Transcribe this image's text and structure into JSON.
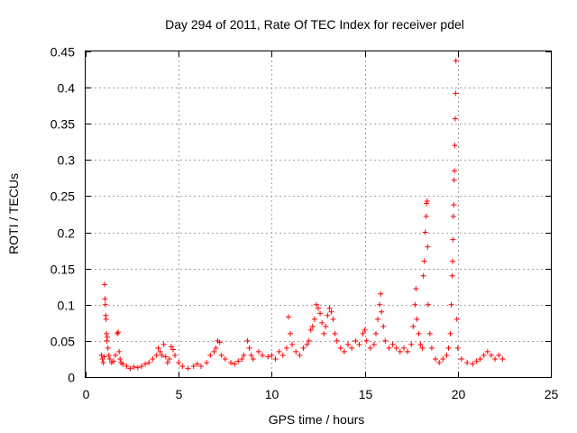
{
  "chart_data": {
    "type": "scatter",
    "title": "Day 294 of 2011, Rate Of TEC Index for receiver pdel",
    "xlabel": "GPS time / hours",
    "ylabel": "ROTI / TECUs",
    "xlim": [
      0,
      25
    ],
    "ylim": [
      0,
      0.45
    ],
    "xticks": [
      "0",
      "5",
      "10",
      "15",
      "20",
      "25"
    ],
    "yticks": [
      "0",
      "0.05",
      "0.1",
      "0.15",
      "0.2",
      "0.25",
      "0.3",
      "0.35",
      "0.4",
      "0.45"
    ],
    "grid": true,
    "marker": "+",
    "color": "#ff0000",
    "series": [
      {
        "name": "ROTI",
        "points": [
          [
            0.85,
            0.03
          ],
          [
            0.9,
            0.025
          ],
          [
            0.95,
            0.02
          ],
          [
            1.0,
            0.028
          ],
          [
            1.02,
            0.128
          ],
          [
            1.04,
            0.108
          ],
          [
            1.06,
            0.1
          ],
          [
            1.08,
            0.085
          ],
          [
            1.1,
            0.08
          ],
          [
            1.12,
            0.06
          ],
          [
            1.14,
            0.05
          ],
          [
            1.16,
            0.055
          ],
          [
            1.2,
            0.04
          ],
          [
            1.25,
            0.03
          ],
          [
            1.3,
            0.025
          ],
          [
            1.4,
            0.02
          ],
          [
            1.5,
            0.022
          ],
          [
            1.6,
            0.03
          ],
          [
            1.7,
            0.06
          ],
          [
            1.75,
            0.062
          ],
          [
            1.8,
            0.035
          ],
          [
            1.85,
            0.025
          ],
          [
            1.9,
            0.02
          ],
          [
            2.0,
            0.018
          ],
          [
            2.2,
            0.015
          ],
          [
            2.4,
            0.012
          ],
          [
            2.6,
            0.014
          ],
          [
            2.8,
            0.013
          ],
          [
            3.0,
            0.015
          ],
          [
            3.2,
            0.018
          ],
          [
            3.4,
            0.02
          ],
          [
            3.6,
            0.025
          ],
          [
            3.8,
            0.03
          ],
          [
            3.9,
            0.04
          ],
          [
            4.0,
            0.035
          ],
          [
            4.1,
            0.03
          ],
          [
            4.2,
            0.045
          ],
          [
            4.3,
            0.028
          ],
          [
            4.4,
            0.02
          ],
          [
            4.5,
            0.025
          ],
          [
            4.6,
            0.042
          ],
          [
            4.7,
            0.038
          ],
          [
            4.8,
            0.03
          ],
          [
            5.0,
            0.02
          ],
          [
            5.2,
            0.015
          ],
          [
            5.5,
            0.012
          ],
          [
            5.8,
            0.015
          ],
          [
            6.0,
            0.018
          ],
          [
            6.2,
            0.015
          ],
          [
            6.5,
            0.02
          ],
          [
            6.7,
            0.03
          ],
          [
            6.9,
            0.035
          ],
          [
            7.0,
            0.04
          ],
          [
            7.1,
            0.05
          ],
          [
            7.2,
            0.048
          ],
          [
            7.3,
            0.03
          ],
          [
            7.5,
            0.025
          ],
          [
            7.8,
            0.02
          ],
          [
            8.0,
            0.018
          ],
          [
            8.2,
            0.022
          ],
          [
            8.4,
            0.025
          ],
          [
            8.5,
            0.03
          ],
          [
            8.7,
            0.05
          ],
          [
            8.8,
            0.04
          ],
          [
            8.9,
            0.03
          ],
          [
            9.0,
            0.025
          ],
          [
            9.3,
            0.035
          ],
          [
            9.5,
            0.03
          ],
          [
            9.8,
            0.028
          ],
          [
            10.0,
            0.03
          ],
          [
            10.2,
            0.025
          ],
          [
            10.4,
            0.035
          ],
          [
            10.6,
            0.03
          ],
          [
            10.8,
            0.04
          ],
          [
            10.9,
            0.083
          ],
          [
            11.0,
            0.06
          ],
          [
            11.1,
            0.045
          ],
          [
            11.3,
            0.035
          ],
          [
            11.5,
            0.03
          ],
          [
            11.7,
            0.04
          ],
          [
            11.9,
            0.045
          ],
          [
            12.0,
            0.05
          ],
          [
            12.1,
            0.065
          ],
          [
            12.2,
            0.07
          ],
          [
            12.3,
            0.08
          ],
          [
            12.4,
            0.1
          ],
          [
            12.5,
            0.095
          ],
          [
            12.6,
            0.088
          ],
          [
            12.7,
            0.075
          ],
          [
            12.8,
            0.06
          ],
          [
            12.9,
            0.07
          ],
          [
            13.0,
            0.085
          ],
          [
            13.1,
            0.095
          ],
          [
            13.2,
            0.09
          ],
          [
            13.3,
            0.08
          ],
          [
            13.4,
            0.06
          ],
          [
            13.5,
            0.05
          ],
          [
            13.7,
            0.04
          ],
          [
            13.9,
            0.035
          ],
          [
            14.1,
            0.045
          ],
          [
            14.3,
            0.04
          ],
          [
            14.5,
            0.05
          ],
          [
            14.7,
            0.045
          ],
          [
            14.9,
            0.06
          ],
          [
            15.0,
            0.065
          ],
          [
            15.1,
            0.05
          ],
          [
            15.3,
            0.04
          ],
          [
            15.5,
            0.045
          ],
          [
            15.6,
            0.06
          ],
          [
            15.7,
            0.08
          ],
          [
            15.8,
            0.1
          ],
          [
            15.85,
            0.115
          ],
          [
            15.9,
            0.09
          ],
          [
            16.0,
            0.07
          ],
          [
            16.1,
            0.05
          ],
          [
            16.3,
            0.04
          ],
          [
            16.5,
            0.045
          ],
          [
            16.7,
            0.04
          ],
          [
            16.9,
            0.035
          ],
          [
            17.1,
            0.04
          ],
          [
            17.3,
            0.035
          ],
          [
            17.5,
            0.045
          ],
          [
            17.6,
            0.07
          ],
          [
            17.7,
            0.1
          ],
          [
            17.75,
            0.122
          ],
          [
            17.8,
            0.08
          ],
          [
            17.9,
            0.06
          ],
          [
            18.0,
            0.045
          ],
          [
            18.1,
            0.04
          ],
          [
            18.15,
            0.14
          ],
          [
            18.2,
            0.16
          ],
          [
            18.25,
            0.2
          ],
          [
            18.3,
            0.222
          ],
          [
            18.32,
            0.24
          ],
          [
            18.35,
            0.243
          ],
          [
            18.38,
            0.18
          ],
          [
            18.4,
            0.1
          ],
          [
            18.5,
            0.06
          ],
          [
            18.6,
            0.04
          ],
          [
            18.8,
            0.025
          ],
          [
            19.0,
            0.02
          ],
          [
            19.2,
            0.025
          ],
          [
            19.4,
            0.03
          ],
          [
            19.5,
            0.04
          ],
          [
            19.6,
            0.06
          ],
          [
            19.65,
            0.1
          ],
          [
            19.7,
            0.14
          ],
          [
            19.72,
            0.16
          ],
          [
            19.74,
            0.19
          ],
          [
            19.76,
            0.222
          ],
          [
            19.78,
            0.238
          ],
          [
            19.8,
            0.272
          ],
          [
            19.82,
            0.285
          ],
          [
            19.84,
            0.32
          ],
          [
            19.86,
            0.357
          ],
          [
            19.88,
            0.392
          ],
          [
            19.9,
            0.437
          ],
          [
            19.95,
            0.08
          ],
          [
            20.0,
            0.04
          ],
          [
            20.2,
            0.025
          ],
          [
            20.5,
            0.02
          ],
          [
            20.8,
            0.018
          ],
          [
            21.0,
            0.022
          ],
          [
            21.2,
            0.025
          ],
          [
            21.4,
            0.03
          ],
          [
            21.6,
            0.035
          ],
          [
            21.8,
            0.03
          ],
          [
            22.0,
            0.025
          ],
          [
            22.2,
            0.03
          ],
          [
            22.4,
            0.025
          ]
        ]
      }
    ]
  }
}
